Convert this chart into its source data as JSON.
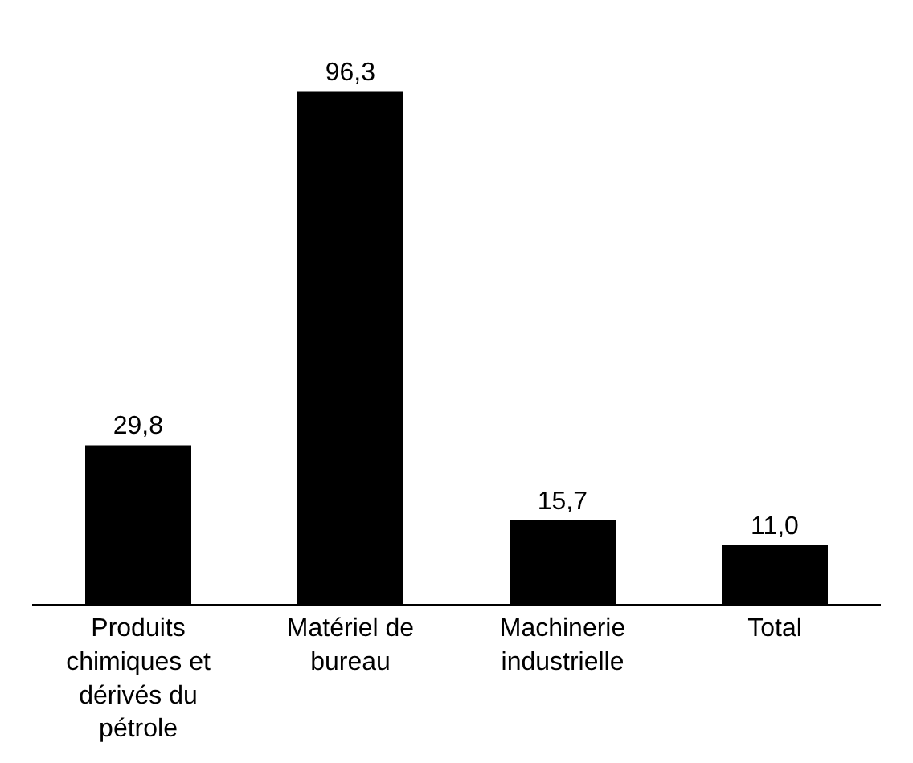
{
  "chart_data": {
    "type": "bar",
    "categories": [
      "Produits chimiques et dérivés du pétrole",
      "Matériel de bureau",
      "Machinerie industrielle",
      "Total"
    ],
    "values": [
      29.8,
      96.3,
      15.7,
      11.0
    ],
    "value_labels": [
      "29,8",
      "96,3",
      "15,7",
      "11,0"
    ],
    "color": "#000000",
    "tick_labels": "x",
    "legend": false
  }
}
